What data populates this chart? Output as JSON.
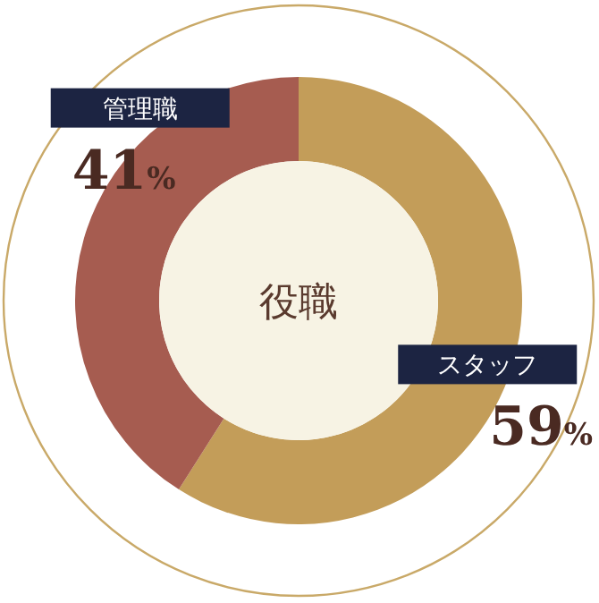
{
  "chart_data": {
    "type": "donut",
    "title": "役職",
    "categories": [
      "スタッフ",
      "管理職"
    ],
    "values": [
      59,
      41
    ],
    "colors": [
      "#c39d59",
      "#a65c50"
    ],
    "value_labels": [
      "59%",
      "41%"
    ]
  }
}
